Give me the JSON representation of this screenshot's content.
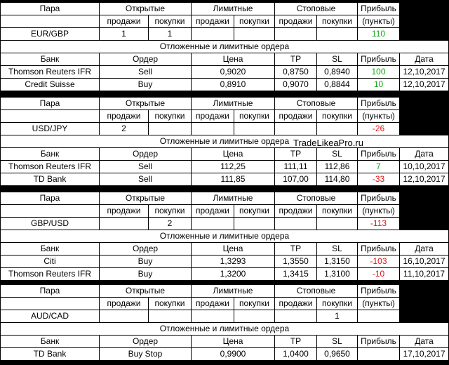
{
  "headers": {
    "pair": "Пара",
    "open": "Открытые",
    "limit": "Лимитные",
    "stop": "Стоповые",
    "profit": "Прибыль",
    "profit_points": "(пункты)",
    "sell": "продажи",
    "buy": "покупки",
    "section": "Отложенные и лимитные ордера",
    "bank": "Банк",
    "order": "Ордер",
    "price": "Цена",
    "tp": "TP",
    "sl": "SL",
    "date": "Дата"
  },
  "watermark": "TradeLikeaPro.ru",
  "colors": {
    "profit_positive": "#13a313",
    "profit_negative": "#e01616"
  },
  "blocks": [
    {
      "pair": "EUR/GBP",
      "open_sell": "1",
      "open_buy": "1",
      "limit_sell": "",
      "limit_buy": "",
      "stop_sell": "",
      "stop_buy": "",
      "profit": "110",
      "orders": [
        {
          "bank": "Thomson Reuters IFR",
          "order": "Sell",
          "price": "0,9020",
          "tp": "0,8750",
          "sl": "0,8940",
          "profit": "100",
          "date": "12,10,2017"
        },
        {
          "bank": "Credit Suisse",
          "order": "Buy",
          "price": "0,8910",
          "tp": "0,9070",
          "sl": "0,8844",
          "profit": "10",
          "date": "12,10,2017"
        }
      ]
    },
    {
      "pair": "USD/JPY",
      "open_sell": "2",
      "open_buy": "",
      "limit_sell": "",
      "limit_buy": "",
      "stop_sell": "",
      "stop_buy": "",
      "profit": "-26",
      "orders": [
        {
          "bank": "Thomson Reuters IFR",
          "order": "Sell",
          "price": "112,25",
          "tp": "111,11",
          "sl": "112,86",
          "profit": "7",
          "date": "10,10,2017"
        },
        {
          "bank": "TD Bank",
          "order": "Sell",
          "price": "111,85",
          "tp": "107,00",
          "sl": "114,80",
          "profit": "-33",
          "date": "12,10,2017"
        }
      ]
    },
    {
      "pair": "GBP/USD",
      "open_sell": "",
      "open_buy": "2",
      "limit_sell": "",
      "limit_buy": "",
      "stop_sell": "",
      "stop_buy": "",
      "profit": "-113",
      "orders": [
        {
          "bank": "Citi",
          "order": "Buy",
          "price": "1,3293",
          "tp": "1,3550",
          "sl": "1,3150",
          "profit": "-103",
          "date": "16,10,2017"
        },
        {
          "bank": "Thomson Reuters IFR",
          "order": "Buy",
          "price": "1,3200",
          "tp": "1,3415",
          "sl": "1,3100",
          "profit": "-10",
          "date": "11,10,2017"
        }
      ]
    },
    {
      "pair": "AUD/CAD",
      "open_sell": "",
      "open_buy": "",
      "limit_sell": "",
      "limit_buy": "",
      "stop_sell": "",
      "stop_buy": "1",
      "profit": "",
      "orders": [
        {
          "bank": "TD Bank",
          "order": "Buy Stop",
          "price": "0,9900",
          "tp": "1,0400",
          "sl": "0,9650",
          "profit": "",
          "date": "17,10,2017"
        }
      ]
    }
  ]
}
